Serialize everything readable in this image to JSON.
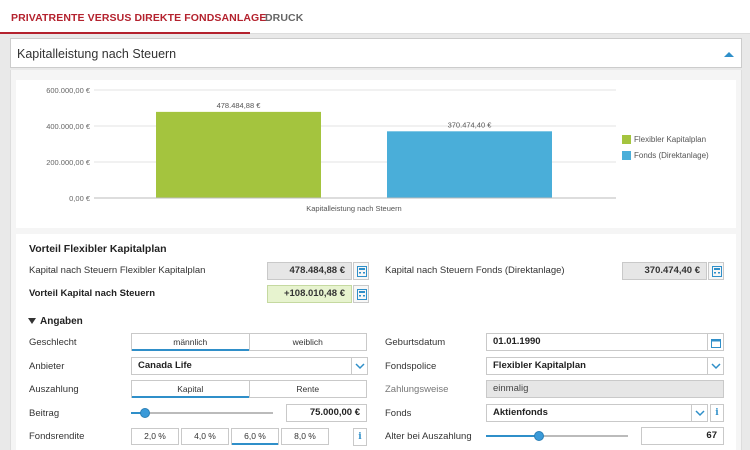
{
  "nav": {
    "tabs": [
      {
        "label": "PRIVATRENTE VERSUS DIREKTE FONDSANLAGE",
        "active": true
      },
      {
        "label": "DRUCK",
        "active": false
      }
    ]
  },
  "header": {
    "title": "Kapitalleistung nach Steuern"
  },
  "chart_data": {
    "type": "bar",
    "categories": [
      "Flexibler Kapitalplan",
      "Fonds (Direktanlage)"
    ],
    "values": [
      478484.88,
      370474.4
    ],
    "value_labels": [
      "478.484,88 €",
      "370.474,40 €"
    ],
    "colors": [
      "#a4c43e",
      "#4aaed9"
    ],
    "ylim": [
      0,
      600000
    ],
    "yticks": [
      0,
      200000,
      400000,
      600000
    ],
    "ytick_labels": [
      "0,00 €",
      "200.000,00 €",
      "400.000,00 €",
      "600.000,00 €"
    ],
    "xlabel": "Kapitalleistung nach Steuern",
    "legend": [
      "Flexibler Kapitalplan",
      "Fonds (Direktanlage)"
    ],
    "legend_position": "right",
    "grid": true
  },
  "vorteil": {
    "title": "Vorteil Flexibler Kapitalplan",
    "kapital_flex_label": "Kapital nach Steuern Flexibler Kapitalplan",
    "kapital_flex_value": "478.484,88 €",
    "kapital_fonds_label": "Kapital nach Steuern Fonds (Direktanlage)",
    "kapital_fonds_value": "370.474,40 €",
    "vorteil_label": "Vorteil Kapital nach Steuern",
    "vorteil_value": "+108.010,48 €"
  },
  "angaben": {
    "title": "Angaben",
    "geschlecht": {
      "label": "Geschlecht",
      "options": [
        "männlich",
        "weiblich"
      ],
      "selected": "männlich"
    },
    "geburtsdatum": {
      "label": "Geburtsdatum",
      "value": "01.01.1990"
    },
    "anbieter": {
      "label": "Anbieter",
      "value": "Canada Life"
    },
    "fondspolice": {
      "label": "Fondspolice",
      "value": "Flexibler Kapitalplan"
    },
    "auszahlung": {
      "label": "Auszahlung",
      "options": [
        "Kapital",
        "Rente"
      ],
      "selected": "Kapital"
    },
    "zahlungsweise": {
      "label": "Zahlungsweise",
      "value": "einmalig"
    },
    "beitrag": {
      "label": "Beitrag",
      "value": "75.000,00 €",
      "slider_level": 0.1
    },
    "fonds": {
      "label": "Fonds",
      "value": "Aktienfonds"
    },
    "fondsrendite": {
      "label": "Fondsrendite",
      "options": [
        "2,0 %",
        "4,0 %",
        "6,0 %",
        "8,0 %"
      ],
      "selected": "6,0 %"
    },
    "alter": {
      "label": "Alter bei Auszahlung",
      "value": "67",
      "slider_level": 0.37
    }
  }
}
